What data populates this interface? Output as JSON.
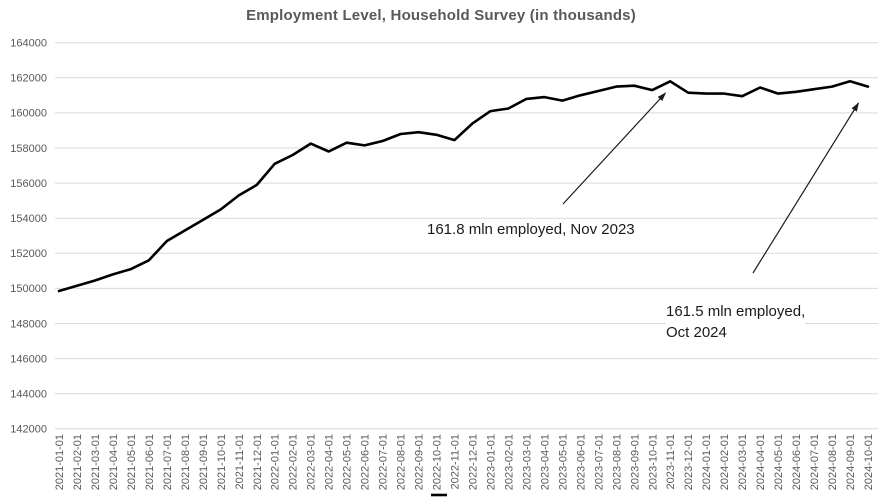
{
  "title": "Employment Level, Household Survey (in thousands)",
  "colors": {
    "background": "#FFFFFF",
    "title": "#595959",
    "axis_label": "#595959",
    "gridline": "#D9D9D9",
    "line": "#000000",
    "annotation": "#1A1A1A",
    "arrow": "#1A1A1A"
  },
  "chart_data": {
    "type": "line",
    "title": "Employment Level, Household Survey (in thousands)",
    "xlabel": "",
    "ylabel": "",
    "ylim": [
      142000,
      164000
    ],
    "yticks": [
      142000,
      144000,
      146000,
      148000,
      150000,
      152000,
      154000,
      156000,
      158000,
      160000,
      162000,
      164000
    ],
    "grid": true,
    "legend_position": "bottom-cropped",
    "x": [
      "2021-01-01",
      "2021-02-01",
      "2021-03-01",
      "2021-04-01",
      "2021-05-01",
      "2021-06-01",
      "2021-07-01",
      "2021-08-01",
      "2021-09-01",
      "2021-10-01",
      "2021-11-01",
      "2021-12-01",
      "2022-01-01",
      "2022-02-01",
      "2022-03-01",
      "2022-04-01",
      "2022-05-01",
      "2022-06-01",
      "2022-07-01",
      "2022-08-01",
      "2022-09-01",
      "2022-10-01",
      "2022-11-01",
      "2022-12-01",
      "2023-01-01",
      "2023-02-01",
      "2023-03-01",
      "2023-04-01",
      "2023-05-01",
      "2023-06-01",
      "2023-07-01",
      "2023-08-01",
      "2023-09-01",
      "2023-10-01",
      "2023-11-01",
      "2023-12-01",
      "2024-01-01",
      "2024-02-01",
      "2024-03-01",
      "2024-04-01",
      "2024-05-01",
      "2024-06-01",
      "2024-07-01",
      "2024-08-01",
      "2024-09-01",
      "2024-10-01"
    ],
    "values": [
      149850,
      150150,
      150450,
      150800,
      151100,
      151600,
      152700,
      153300,
      153900,
      154500,
      155300,
      155900,
      157100,
      157600,
      158250,
      157800,
      158300,
      158150,
      158400,
      158800,
      158900,
      158750,
      158450,
      159400,
      160100,
      160250,
      160800,
      160900,
      160700,
      161000,
      161250,
      161500,
      161550,
      161300,
      161800,
      161150,
      161100,
      161100,
      160950,
      161450,
      161100,
      161200,
      161350,
      161500,
      161800,
      161500
    ],
    "annotations": [
      {
        "text": "161.8 mln employed, Nov 2023"
      },
      {
        "lines": [
          "161.5 mln employed,",
          "Oct 2024"
        ]
      }
    ]
  }
}
